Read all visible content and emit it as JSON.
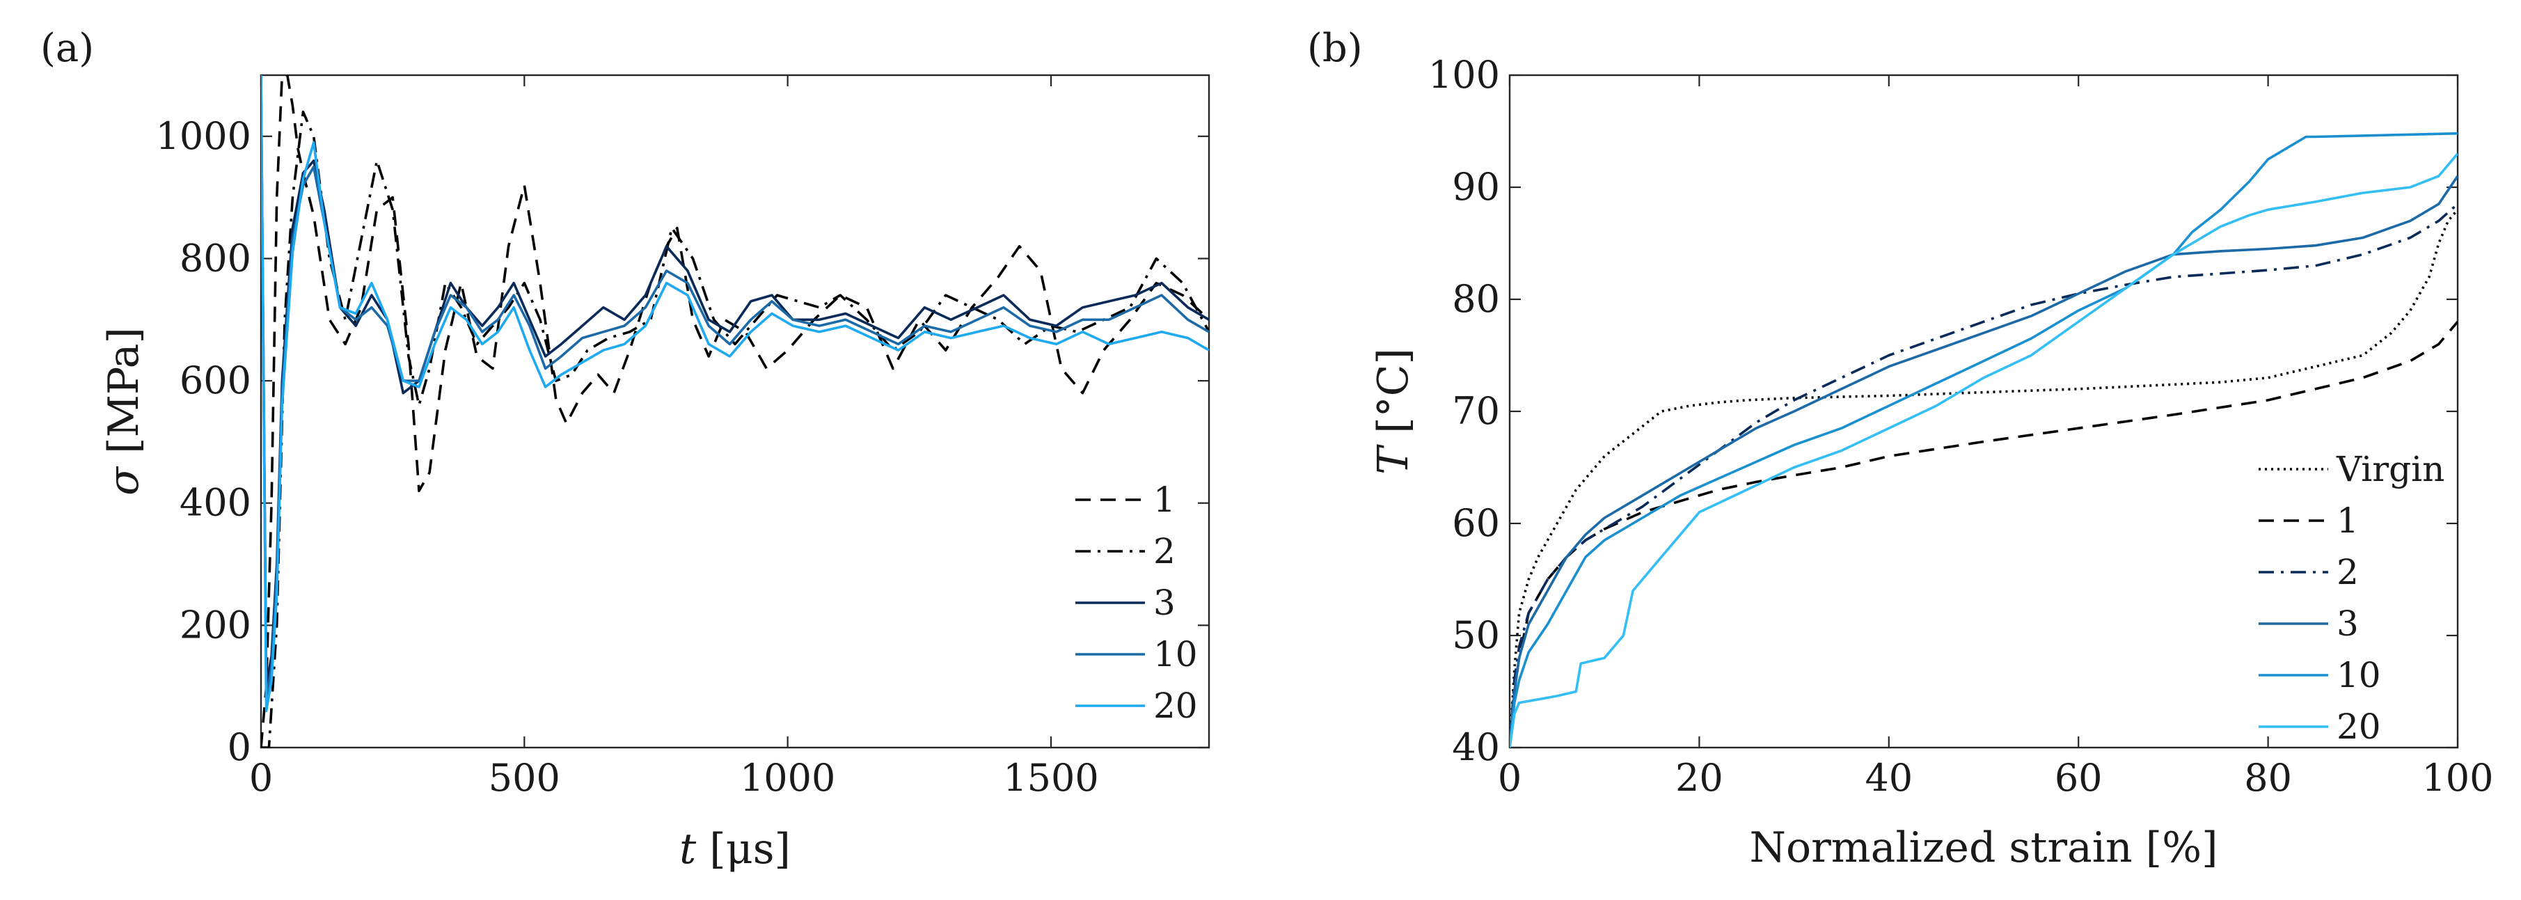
{
  "chart_data": [
    {
      "type": "line",
      "panel_label": "(a)",
      "xlabel_sym": "t",
      "xlabel_unit": " [μs]",
      "ylabel_sym": "σ",
      "ylabel_unit": " [MPa]",
      "xlim": [
        0,
        1800
      ],
      "ylim": [
        0,
        1100
      ],
      "xticks": [
        0,
        500,
        1000,
        1500
      ],
      "yticks": [
        0,
        200,
        400,
        600,
        800,
        1000
      ],
      "legend_position": "bottom-right",
      "series": [
        {
          "name": "1",
          "style": "dashed",
          "color": "#000000",
          "x": [
            0,
            10,
            20,
            30,
            40,
            50,
            60,
            70,
            80,
            100,
            130,
            160,
            190,
            220,
            250,
            280,
            300,
            320,
            350,
            380,
            410,
            440,
            470,
            500,
            530,
            560,
            580,
            610,
            640,
            670,
            700,
            740,
            770,
            790,
            820,
            850,
            880,
            920,
            960,
            1000,
            1050,
            1100,
            1150,
            1200,
            1250,
            1300,
            1350,
            1400,
            1440,
            1480,
            1520,
            1560,
            1600,
            1650,
            1700,
            1750,
            1800
          ],
          "y": [
            0,
            100,
            400,
            900,
            1100,
            1100,
            1050,
            980,
            940,
            870,
            700,
            660,
            720,
            880,
            900,
            660,
            420,
            450,
            650,
            760,
            640,
            620,
            820,
            920,
            760,
            570,
            530,
            580,
            610,
            580,
            650,
            760,
            820,
            850,
            700,
            640,
            700,
            680,
            620,
            650,
            700,
            740,
            720,
            620,
            700,
            650,
            720,
            770,
            820,
            780,
            620,
            580,
            650,
            700,
            760,
            740,
            700
          ]
        },
        {
          "name": "2",
          "style": "dashdot",
          "color": "#000000",
          "x": [
            0,
            15,
            30,
            45,
            60,
            80,
            100,
            130,
            160,
            190,
            220,
            250,
            280,
            300,
            320,
            350,
            380,
            410,
            440,
            470,
            500,
            530,
            560,
            590,
            620,
            660,
            700,
            740,
            780,
            820,
            860,
            900,
            940,
            980,
            1020,
            1060,
            1100,
            1150,
            1200,
            1250,
            1300,
            1350,
            1400,
            1450,
            1500,
            1550,
            1600,
            1650,
            1700,
            1750,
            1800
          ],
          "y": [
            0,
            0,
            200,
            700,
            900,
            1040,
            1000,
            800,
            700,
            830,
            960,
            880,
            640,
            560,
            620,
            760,
            720,
            660,
            690,
            720,
            760,
            700,
            600,
            610,
            650,
            670,
            680,
            700,
            850,
            800,
            700,
            660,
            700,
            740,
            730,
            720,
            740,
            700,
            650,
            680,
            740,
            720,
            700,
            660,
            690,
            680,
            700,
            720,
            800,
            760,
            680
          ]
        },
        {
          "name": "3",
          "style": "solid",
          "color": "#0a2a5a",
          "x": [
            0,
            10,
            20,
            30,
            40,
            60,
            80,
            100,
            120,
            150,
            180,
            210,
            240,
            270,
            300,
            330,
            360,
            390,
            420,
            450,
            480,
            510,
            540,
            570,
            610,
            650,
            690,
            730,
            770,
            810,
            850,
            890,
            930,
            970,
            1010,
            1060,
            1110,
            1160,
            1210,
            1260,
            1310,
            1360,
            1410,
            1460,
            1510,
            1560,
            1610,
            1660,
            1710,
            1760,
            1800
          ],
          "y": [
            1100,
            100,
            150,
            300,
            600,
            850,
            940,
            960,
            880,
            720,
            690,
            740,
            700,
            580,
            600,
            680,
            760,
            720,
            690,
            720,
            760,
            700,
            640,
            660,
            690,
            720,
            700,
            740,
            820,
            780,
            700,
            680,
            730,
            740,
            700,
            700,
            710,
            690,
            670,
            720,
            700,
            720,
            740,
            700,
            690,
            720,
            730,
            740,
            760,
            720,
            700
          ]
        },
        {
          "name": "10",
          "style": "solid",
          "color": "#1c6aa8",
          "x": [
            0,
            10,
            20,
            30,
            40,
            60,
            80,
            100,
            120,
            150,
            180,
            210,
            240,
            270,
            300,
            330,
            360,
            390,
            420,
            450,
            480,
            510,
            540,
            570,
            610,
            650,
            690,
            730,
            770,
            810,
            850,
            890,
            930,
            970,
            1010,
            1060,
            1110,
            1160,
            1210,
            1260,
            1310,
            1360,
            1410,
            1460,
            1510,
            1560,
            1610,
            1660,
            1710,
            1760,
            1800
          ],
          "y": [
            1100,
            80,
            130,
            280,
            580,
            830,
            920,
            950,
            860,
            720,
            700,
            720,
            690,
            600,
            600,
            680,
            740,
            720,
            680,
            700,
            740,
            690,
            620,
            640,
            670,
            680,
            690,
            720,
            780,
            760,
            690,
            660,
            700,
            730,
            700,
            690,
            700,
            680,
            660,
            690,
            680,
            700,
            720,
            690,
            680,
            700,
            700,
            720,
            740,
            700,
            680
          ]
        },
        {
          "name": "20",
          "style": "solid",
          "color": "#1eaaf0",
          "x": [
            0,
            10,
            20,
            30,
            40,
            60,
            80,
            100,
            120,
            150,
            180,
            210,
            240,
            270,
            300,
            330,
            360,
            390,
            420,
            450,
            480,
            510,
            540,
            570,
            610,
            650,
            690,
            730,
            770,
            810,
            850,
            890,
            930,
            970,
            1010,
            1060,
            1110,
            1160,
            1210,
            1260,
            1310,
            1360,
            1410,
            1460,
            1510,
            1560,
            1610,
            1660,
            1710,
            1760,
            1800
          ],
          "y": [
            1100,
            60,
            110,
            250,
            560,
            810,
            930,
            990,
            860,
            720,
            710,
            760,
            700,
            600,
            590,
            660,
            720,
            700,
            660,
            680,
            720,
            650,
            590,
            610,
            630,
            650,
            660,
            690,
            760,
            740,
            660,
            640,
            680,
            710,
            690,
            680,
            690,
            670,
            650,
            680,
            670,
            680,
            690,
            670,
            660,
            680,
            660,
            670,
            680,
            670,
            650
          ]
        }
      ]
    },
    {
      "type": "line",
      "panel_label": "(b)",
      "xlabel": "Normalized strain [%]",
      "ylabel_sym": "T",
      "ylabel_unit": " [°C]",
      "xlim": [
        0,
        100
      ],
      "ylim": [
        40,
        100
      ],
      "xticks": [
        0,
        20,
        40,
        60,
        80,
        100
      ],
      "yticks": [
        40,
        50,
        60,
        70,
        80,
        90,
        100
      ],
      "legend_position": "bottom-right",
      "series": [
        {
          "name": "Virgin",
          "style": "dotted",
          "color": "#000000",
          "x": [
            0,
            0.5,
            1,
            2,
            3,
            5,
            7,
            10,
            13,
            16,
            19,
            22,
            25,
            30,
            40,
            50,
            60,
            70,
            75,
            80,
            85,
            90,
            93,
            95,
            97,
            98,
            99,
            100
          ],
          "y": [
            40,
            47,
            52,
            55,
            57,
            60,
            63,
            66,
            68,
            70,
            70.5,
            70.8,
            71,
            71.2,
            71.4,
            71.7,
            72,
            72.4,
            72.6,
            73,
            74,
            75,
            77,
            79,
            82,
            85,
            87,
            88
          ]
        },
        {
          "name": "1",
          "style": "dashed",
          "color": "#000000",
          "x": [
            0,
            0.5,
            1,
            2,
            4,
            6,
            8,
            10,
            14,
            18,
            22,
            26,
            30,
            35,
            40,
            50,
            60,
            70,
            80,
            85,
            90,
            95,
            98,
            99,
            100
          ],
          "y": [
            40,
            45,
            48,
            52,
            55,
            57,
            58.5,
            59.5,
            61,
            62,
            63,
            63.7,
            64.3,
            65,
            66,
            67.3,
            68.5,
            69.7,
            71,
            72,
            73,
            74.5,
            76,
            77,
            78
          ]
        },
        {
          "name": "2",
          "style": "dashdot",
          "color": "#0a2a5a",
          "x": [
            0,
            0.5,
            1,
            2,
            4,
            6,
            8,
            10,
            14,
            18,
            22,
            26,
            30,
            35,
            40,
            45,
            50,
            55,
            60,
            65,
            70,
            75,
            80,
            85,
            90,
            95,
            98,
            100
          ],
          "y": [
            40,
            46,
            49,
            52,
            55,
            57,
            58.5,
            59.5,
            61.5,
            64,
            66.5,
            69,
            71,
            73,
            75,
            76.5,
            78,
            79.5,
            80.5,
            81.3,
            82,
            82.3,
            82.6,
            83,
            84,
            85.5,
            87,
            88.5
          ]
        },
        {
          "name": "3",
          "style": "solid",
          "color": "#1c6aa8",
          "x": [
            0,
            0.5,
            1,
            2,
            4,
            6,
            8,
            10,
            14,
            18,
            22,
            26,
            30,
            35,
            40,
            45,
            50,
            55,
            60,
            65,
            70,
            75,
            80,
            85,
            90,
            95,
            98,
            100
          ],
          "y": [
            40,
            45,
            48,
            51,
            54,
            57,
            59,
            60.5,
            62.5,
            64.5,
            66.5,
            68.5,
            70,
            72,
            74,
            75.5,
            77,
            78.5,
            80.5,
            82.5,
            84,
            84.3,
            84.5,
            84.8,
            85.5,
            87,
            88.5,
            91
          ]
        },
        {
          "name": "10",
          "style": "solid",
          "color": "#1a90d0",
          "x": [
            0,
            0.5,
            1,
            2,
            4,
            6,
            8,
            10,
            14,
            18,
            22,
            26,
            30,
            35,
            40,
            45,
            50,
            55,
            60,
            65,
            70,
            72,
            75,
            78,
            80,
            84,
            85,
            90,
            95,
            100
          ],
          "y": [
            40,
            44,
            46,
            48.5,
            51,
            54,
            57,
            58.5,
            60.5,
            62.5,
            64,
            65.5,
            67,
            68.5,
            70.5,
            72.5,
            74.5,
            76.5,
            79,
            81,
            84,
            86,
            88,
            90.5,
            92.5,
            94.5,
            94.5,
            94.6,
            94.7,
            94.8
          ]
        },
        {
          "name": "20",
          "style": "solid",
          "color": "#33bff5",
          "x": [
            0,
            0.5,
            1,
            3,
            5,
            7,
            7.5,
            10,
            12,
            13,
            15,
            17,
            20,
            25,
            30,
            35,
            40,
            45,
            50,
            55,
            60,
            65,
            70,
            73,
            75,
            78,
            80,
            85,
            90,
            95,
            98,
            100
          ],
          "y": [
            40,
            43,
            44,
            44.3,
            44.6,
            45,
            47.5,
            48,
            50,
            54,
            56,
            58,
            61,
            63,
            65,
            66.5,
            68.5,
            70.5,
            73,
            75,
            78,
            81,
            84,
            85.5,
            86.5,
            87.5,
            88,
            88.7,
            89.5,
            90,
            91,
            93
          ]
        }
      ]
    }
  ]
}
